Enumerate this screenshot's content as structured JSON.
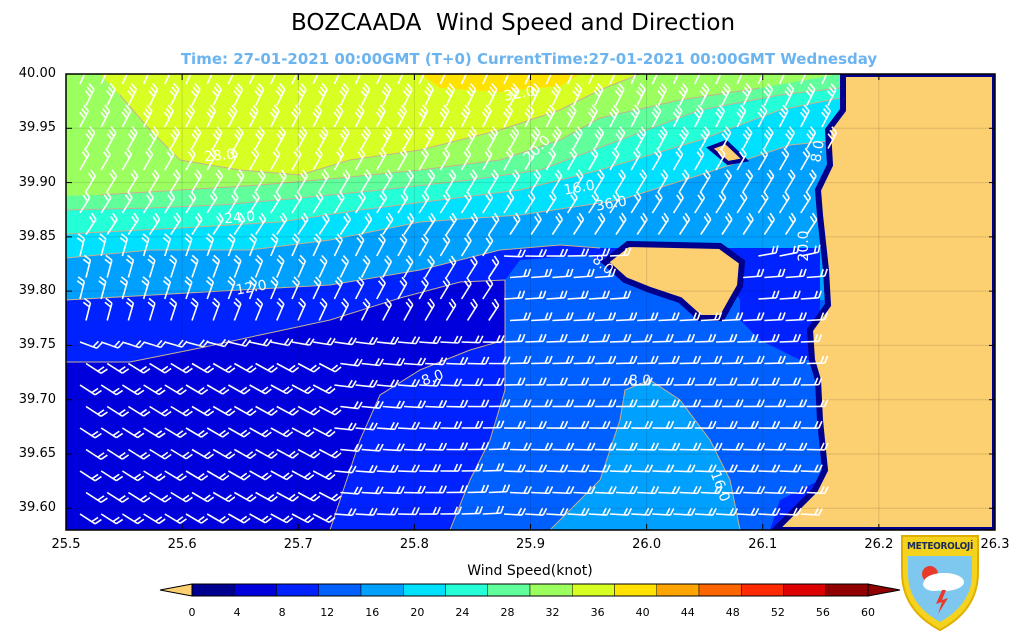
{
  "title": "BOZCAADA  Wind Speed and Direction",
  "subtitle": "Time: 27-01-2021 00:00GMT (T+0)  CurrentTime:27-01-2021 00:00GMT Wednesday",
  "map": {
    "lon_range": [
      25.5,
      26.3
    ],
    "lat_range": [
      39.58,
      40.0
    ],
    "y_ticks": [
      "40.00",
      "39.95",
      "39.90",
      "39.85",
      "39.80",
      "39.75",
      "39.70",
      "39.65",
      "39.60"
    ],
    "x_ticks": [
      "25.5",
      "25.6",
      "25.7",
      "25.8",
      "25.9",
      "26.0",
      "26.1",
      "26.2",
      "26.3"
    ],
    "contour_labels": [
      "8.0",
      "12.0",
      "16.0",
      "20.0",
      "24.0",
      "28.0",
      "32.0",
      "36.0",
      "8.0",
      "16.0",
      "20.0",
      "8.0",
      "8.0"
    ],
    "land_color": "#fccf70",
    "barb_color": "#ffffff"
  },
  "colorbar": {
    "label": "Wind Speed(knot)",
    "ticks": [
      "0",
      "4",
      "8",
      "12",
      "16",
      "20",
      "24",
      "28",
      "32",
      "36",
      "40",
      "44",
      "48",
      "52",
      "56",
      "60"
    ],
    "colors": [
      "#00008f",
      "#0000dd",
      "#0022ff",
      "#0060ff",
      "#00a0ff",
      "#00e0ff",
      "#24ffd8",
      "#60ff9c",
      "#9cff60",
      "#d8ff24",
      "#ffe200",
      "#ffa400",
      "#ff6600",
      "#ff2a00",
      "#dc0000",
      "#900000"
    ],
    "under_color": "#fccf70"
  },
  "logo": {
    "text": "METEOROLOJİ"
  }
}
